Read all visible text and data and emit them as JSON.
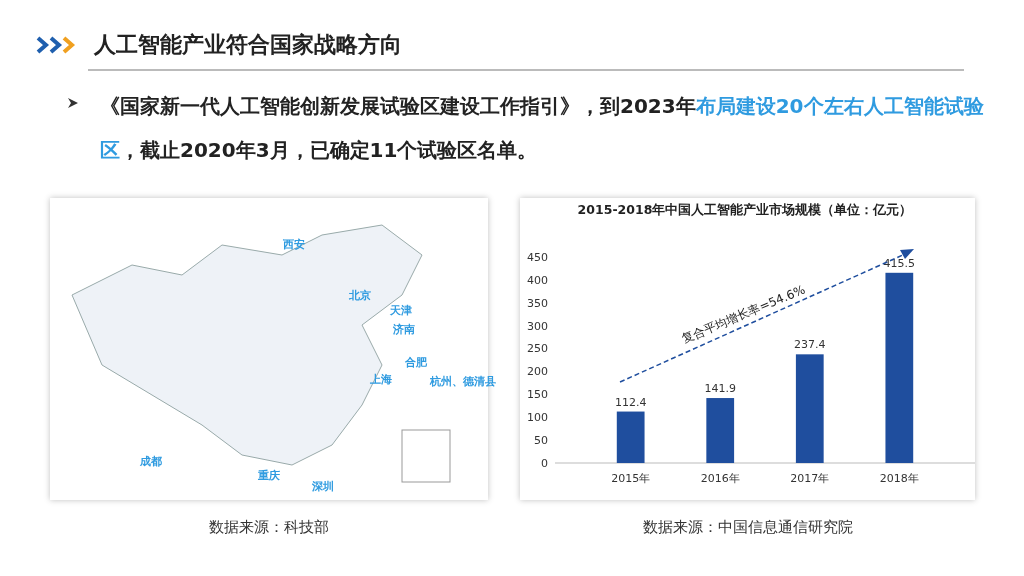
{
  "chart_data": [
    {
      "type": "other",
      "title": "人工智能产业符合国家战略方向",
      "annotations": [
        "《国家新一代人工智能创新发展试验区建设工作指引》，到2023年",
        "布局建设20个左右人工智能试验区",
        "，截止2020年3月，已确定11个试验区名单。",
        "西安",
        "北京",
        "天津",
        "济南",
        "合肥",
        "上海",
        "杭州、德清县",
        "成都",
        "重庆",
        "深圳",
        "数据来源：科技部"
      ]
    },
    {
      "type": "bar",
      "title": "2015-2018年中国人工智能产业市场规模（单位：亿元）",
      "categories": [
        "2015年",
        "2016年",
        "2017年",
        "2018年"
      ],
      "values": [
        112.4,
        141.9,
        237.4,
        415.5
      ],
      "color": "#1f4e9e",
      "data_labels": true,
      "ylim": [
        0,
        450
      ],
      "yticks": [
        0,
        50,
        100,
        150,
        200,
        250,
        300,
        350,
        400,
        450
      ],
      "annotations": [
        "复合平均增长率=54.6%",
        "数据来源：中国信息通信研究院"
      ]
    }
  ]
}
